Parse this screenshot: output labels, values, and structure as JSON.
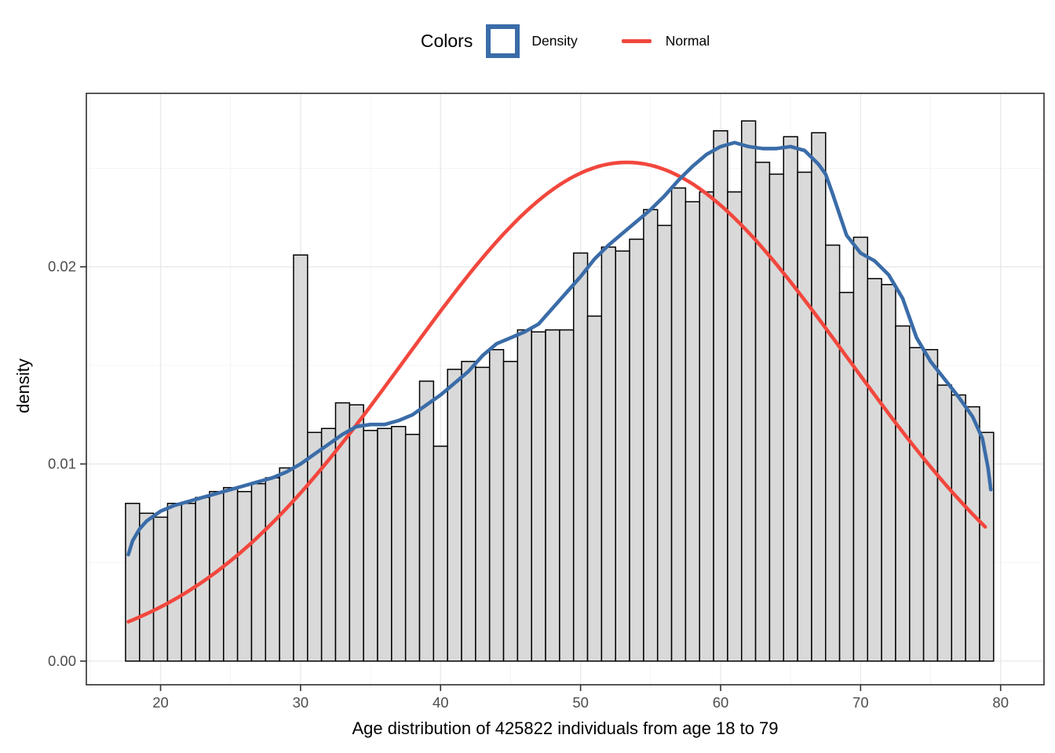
{
  "legend": {
    "title": "Colors",
    "items": [
      {
        "label": "Density",
        "key": "box-outline",
        "color": "#3a6ca8"
      },
      {
        "label": "Normal",
        "key": "line",
        "color": "#f2473d"
      }
    ]
  },
  "colors": {
    "density_curve": "#3a6ca8",
    "normal_curve": "#f2473d",
    "bar_fill": "#d9d9d9",
    "bar_stroke": "#000000",
    "grid_major": "#e9e9e9",
    "grid_minor": "#f4f4f4",
    "axis_text": "#4d4d4d",
    "panel_border": "#2f2f2f"
  },
  "chart_data": {
    "type": [
      "bar",
      "line"
    ],
    "title": "",
    "xlabel": "Age distribution of 425822 individuals from age 18 to 79",
    "ylabel": "density",
    "xlim": [
      14.7,
      83.1
    ],
    "ylim": [
      -0.0012,
      0.0288
    ],
    "grid": true,
    "legend_position": "top",
    "x_ticks": [
      20,
      30,
      40,
      50,
      60,
      70,
      80
    ],
    "x_minor_ticks": [
      15,
      25,
      35,
      45,
      55,
      65,
      75
    ],
    "y_tick_values": [
      0.0,
      0.01,
      0.02
    ],
    "y_tick_labels": [
      "0.00",
      "0.01",
      "0.02"
    ],
    "y_minor_ticks": [
      0.005,
      0.015,
      0.025
    ],
    "histogram": {
      "series_name": "Density",
      "bin_width": 1,
      "age_start": 18,
      "age_end": 79,
      "densities": [
        0.008,
        0.0075,
        0.0073,
        0.008,
        0.008,
        0.0083,
        0.0086,
        0.0088,
        0.0086,
        0.009,
        0.0093,
        0.0098,
        0.0206,
        0.0116,
        0.0118,
        0.0131,
        0.013,
        0.0117,
        0.0118,
        0.0119,
        0.0115,
        0.0142,
        0.0109,
        0.0148,
        0.0152,
        0.0149,
        0.0158,
        0.0152,
        0.0168,
        0.0167,
        0.0168,
        0.0168,
        0.0207,
        0.0175,
        0.021,
        0.0208,
        0.0214,
        0.0229,
        0.0221,
        0.024,
        0.0233,
        0.0238,
        0.0269,
        0.0238,
        0.0274,
        0.0253,
        0.0247,
        0.0266,
        0.0248,
        0.0268,
        0.0211,
        0.0187,
        0.0215,
        0.0194,
        0.0191,
        0.017,
        0.0159,
        0.0158,
        0.014,
        0.0135,
        0.0129,
        0.0116
      ]
    },
    "density_curve": {
      "series_name": "Density",
      "points": [
        [
          17.7,
          0.0054
        ],
        [
          18,
          0.0061
        ],
        [
          18.5,
          0.0067
        ],
        [
          19,
          0.0071
        ],
        [
          20,
          0.0076
        ],
        [
          21,
          0.0079
        ],
        [
          22,
          0.0081
        ],
        [
          23,
          0.0083
        ],
        [
          24,
          0.0085
        ],
        [
          25,
          0.0087
        ],
        [
          26,
          0.0089
        ],
        [
          27,
          0.0091
        ],
        [
          28,
          0.0093
        ],
        [
          29,
          0.0096
        ],
        [
          30,
          0.01
        ],
        [
          31,
          0.0105
        ],
        [
          32,
          0.011
        ],
        [
          33,
          0.0115
        ],
        [
          34,
          0.0119
        ],
        [
          35,
          0.012
        ],
        [
          36,
          0.012
        ],
        [
          37,
          0.0122
        ],
        [
          38,
          0.0125
        ],
        [
          39,
          0.013
        ],
        [
          40,
          0.0135
        ],
        [
          41,
          0.0141
        ],
        [
          42,
          0.0147
        ],
        [
          43,
          0.0155
        ],
        [
          44,
          0.0161
        ],
        [
          45,
          0.0164
        ],
        [
          46,
          0.0167
        ],
        [
          47,
          0.0171
        ],
        [
          48,
          0.0179
        ],
        [
          49,
          0.0187
        ],
        [
          50,
          0.0195
        ],
        [
          51,
          0.0204
        ],
        [
          52,
          0.0211
        ],
        [
          53,
          0.0217
        ],
        [
          54,
          0.0223
        ],
        [
          55,
          0.0229
        ],
        [
          56,
          0.0236
        ],
        [
          57,
          0.0244
        ],
        [
          58,
          0.0251
        ],
        [
          59,
          0.0257
        ],
        [
          60,
          0.0261
        ],
        [
          61,
          0.0263
        ],
        [
          62,
          0.0261
        ],
        [
          63,
          0.026
        ],
        [
          64,
          0.026
        ],
        [
          65,
          0.0261
        ],
        [
          66,
          0.0259
        ],
        [
          67,
          0.0252
        ],
        [
          67.5,
          0.0247
        ],
        [
          68,
          0.0237
        ],
        [
          69,
          0.0216
        ],
        [
          70,
          0.0207
        ],
        [
          71,
          0.0203
        ],
        [
          72,
          0.0196
        ],
        [
          73,
          0.0184
        ],
        [
          74,
          0.0164
        ],
        [
          75,
          0.0152
        ],
        [
          76,
          0.0143
        ],
        [
          77,
          0.0134
        ],
        [
          78,
          0.0124
        ],
        [
          78.7,
          0.0113
        ],
        [
          79.1,
          0.0098
        ],
        [
          79.3,
          0.0087
        ]
      ]
    },
    "normal_curve": {
      "series_name": "Normal",
      "mean": 53.3,
      "sd": 15.8,
      "peak_density": 0.0253,
      "range": [
        17.7,
        79.2
      ]
    }
  }
}
